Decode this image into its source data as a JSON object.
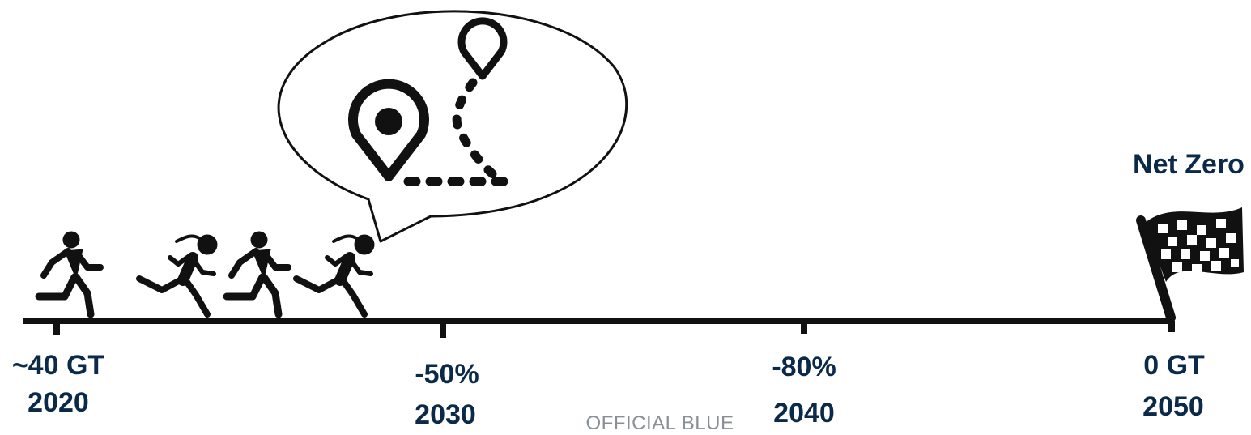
{
  "goal_label": "Net Zero",
  "milestones": [
    {
      "value": "~40 GT",
      "year": "2020"
    },
    {
      "value": "-50%",
      "year": "2030"
    },
    {
      "value": "-80%",
      "year": "2040"
    },
    {
      "value": "0 GT",
      "year": "2050"
    }
  ],
  "footer": "OFFICIAL BLUE",
  "icons": [
    "running-man-icon",
    "running-woman-icon",
    "route-map-pin-icon",
    "checkered-flag-icon"
  ],
  "colors": {
    "label": "#0b2a4a",
    "icon": "#111111",
    "footer": "#8a8f96"
  }
}
